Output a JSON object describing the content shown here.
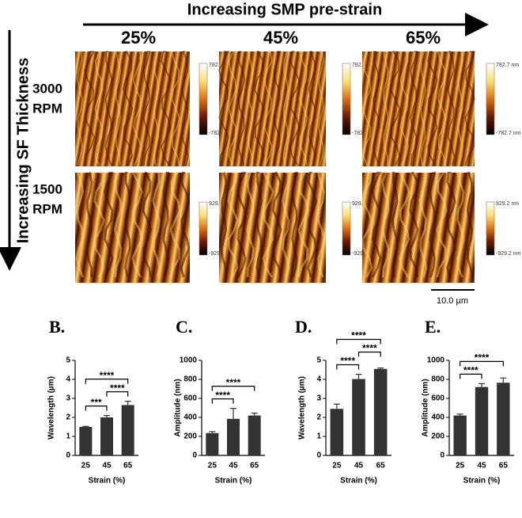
{
  "figure": {
    "x_header": "Increasing SMP pre-strain",
    "y_header": "Increasing SF Thickness",
    "columns": [
      "25%",
      "45%",
      "65%"
    ],
    "rows": [
      {
        "speed": "3000",
        "unit": "RPM",
        "colorbar": [
          "782.7 nm",
          "-782.7 nm"
        ]
      },
      {
        "speed": "1500",
        "unit": "RPM",
        "colorbar": [
          "929.2 nm",
          "-929.2 nm"
        ]
      }
    ],
    "scale_bar": "10.0 µm"
  },
  "chart_data": [
    {
      "type": "bar",
      "label": "B.",
      "xlabel": "Strain (%)",
      "ylabel": "Wavelength (µm)",
      "color": "#333333",
      "categories": [
        "25",
        "45",
        "65"
      ],
      "values": [
        1.5,
        2.0,
        2.65
      ],
      "errors": [
        0.03,
        0.1,
        0.2
      ],
      "ylim": [
        0,
        5
      ],
      "yticks": [
        0,
        1,
        2,
        3,
        4,
        5
      ],
      "significance": [
        {
          "text": "***",
          "between": [
            0,
            1
          ]
        },
        {
          "text": "****",
          "between": [
            1,
            2
          ]
        },
        {
          "text": "****",
          "between": [
            0,
            2
          ]
        }
      ]
    },
    {
      "type": "bar",
      "label": "C.",
      "xlabel": "Strain (%)",
      "ylabel": "Amplitude (nm)",
      "color": "#333333",
      "categories": [
        "25",
        "45",
        "65"
      ],
      "values": [
        235,
        385,
        420
      ],
      "errors": [
        15,
        110,
        25
      ],
      "ylim": [
        0,
        1000
      ],
      "yticks": [
        0,
        200,
        400,
        600,
        800,
        1000
      ],
      "significance": [
        {
          "text": "****",
          "between": [
            0,
            1
          ]
        },
        {
          "text": "****",
          "between": [
            0,
            2
          ]
        }
      ]
    },
    {
      "type": "bar",
      "label": "D.",
      "xlabel": "Strain (%)",
      "ylabel": "Wavelength (µm)",
      "color": "#333333",
      "categories": [
        "25",
        "45",
        "65"
      ],
      "values": [
        2.45,
        4.02,
        4.55
      ],
      "errors": [
        0.25,
        0.25,
        0.05
      ],
      "ylim": [
        0,
        5
      ],
      "yticks": [
        0,
        1,
        2,
        3,
        4,
        5
      ],
      "significance": [
        {
          "text": "****",
          "between": [
            0,
            1
          ]
        },
        {
          "text": "****",
          "between": [
            1,
            2
          ]
        },
        {
          "text": "****",
          "between": [
            0,
            2
          ]
        }
      ]
    },
    {
      "type": "bar",
      "label": "E.",
      "xlabel": "Strain (%)",
      "ylabel": "Amplitude (nm)",
      "color": "#333333",
      "categories": [
        "25",
        "45",
        "65"
      ],
      "values": [
        420,
        720,
        765
      ],
      "errors": [
        15,
        35,
        50
      ],
      "ylim": [
        0,
        1000
      ],
      "yticks": [
        0,
        200,
        400,
        600,
        800,
        1000
      ],
      "significance": [
        {
          "text": "****",
          "between": [
            0,
            1
          ]
        },
        {
          "text": "****",
          "between": [
            0,
            2
          ]
        }
      ]
    }
  ]
}
